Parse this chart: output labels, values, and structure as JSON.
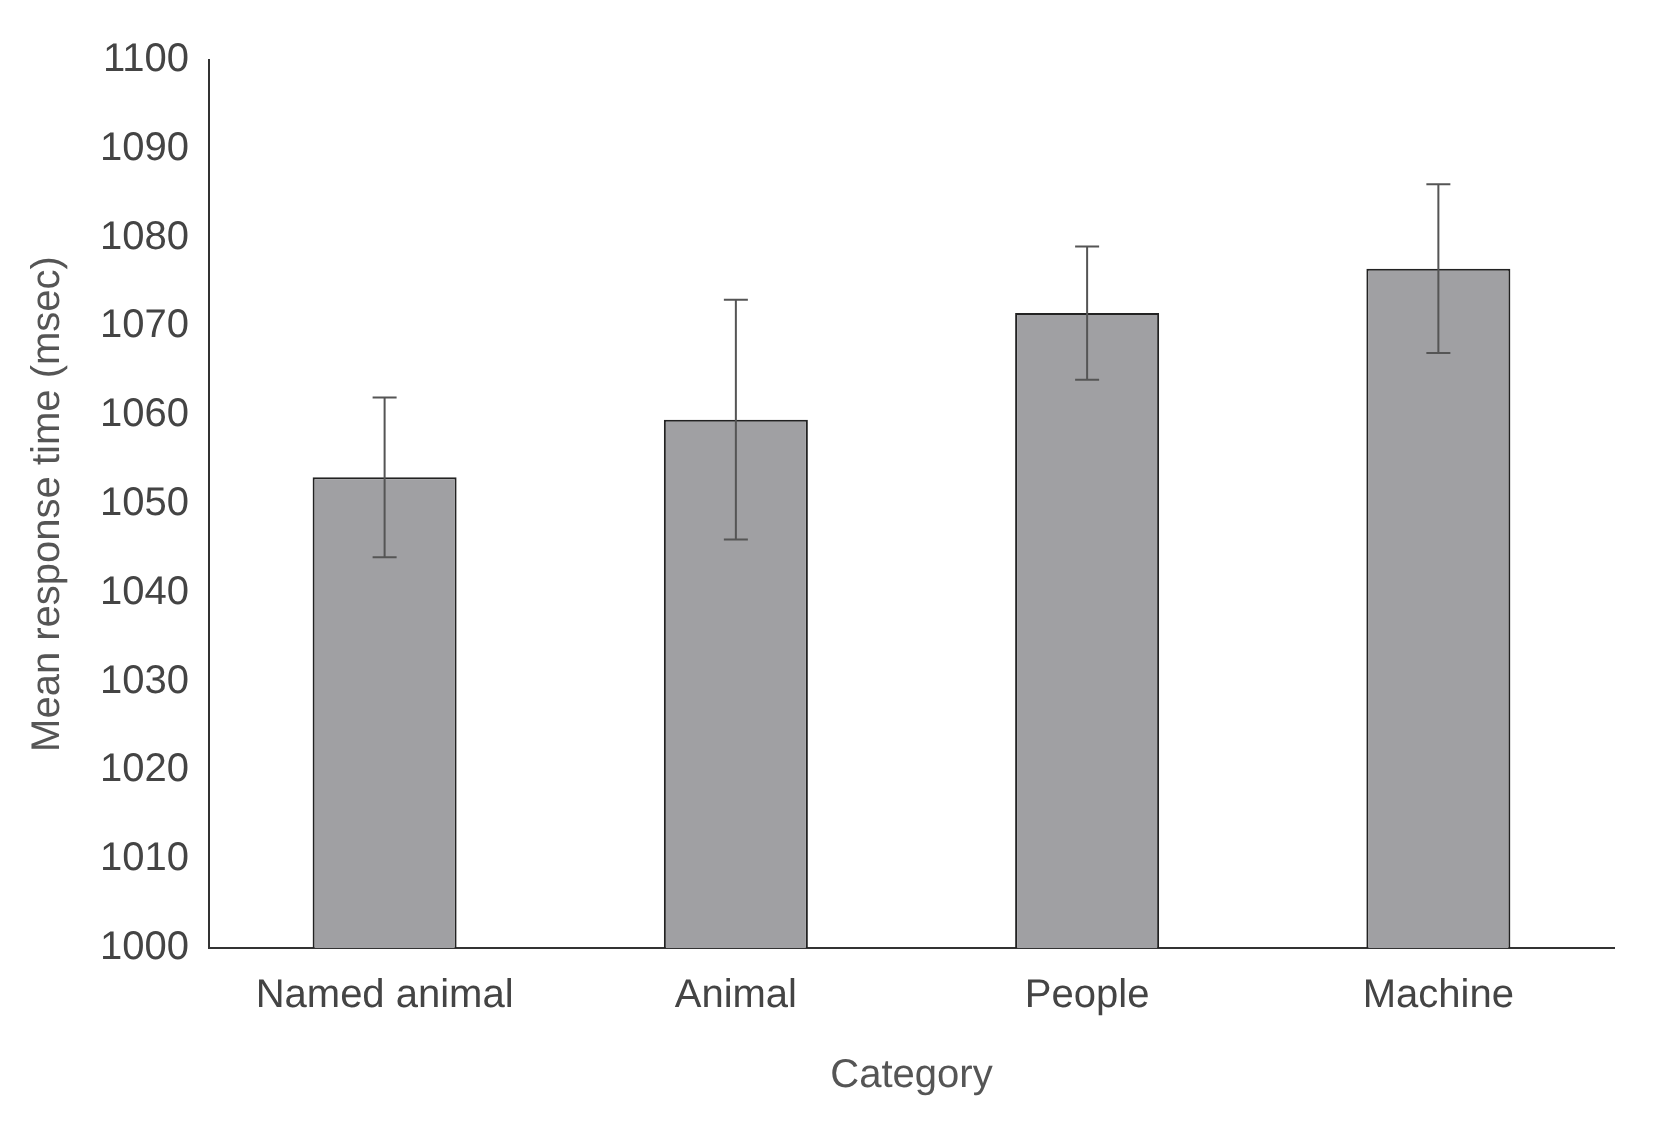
{
  "chart_data": {
    "type": "bar",
    "xlabel": "Category",
    "ylabel": "Mean response time (msec)",
    "categories": [
      "Named animal",
      "Animal",
      "People",
      "Machine"
    ],
    "values": [
      1053,
      1059.5,
      1071.5,
      1076.5
    ],
    "errors": [
      9,
      13.5,
      7.5,
      9.5
    ],
    "color": "#a0a0a3",
    "ylim": [
      1000,
      1100
    ],
    "yticks": [
      1000,
      1010,
      1020,
      1030,
      1040,
      1050,
      1060,
      1070,
      1080,
      1090,
      1100
    ],
    "grid": false,
    "legend": false
  }
}
